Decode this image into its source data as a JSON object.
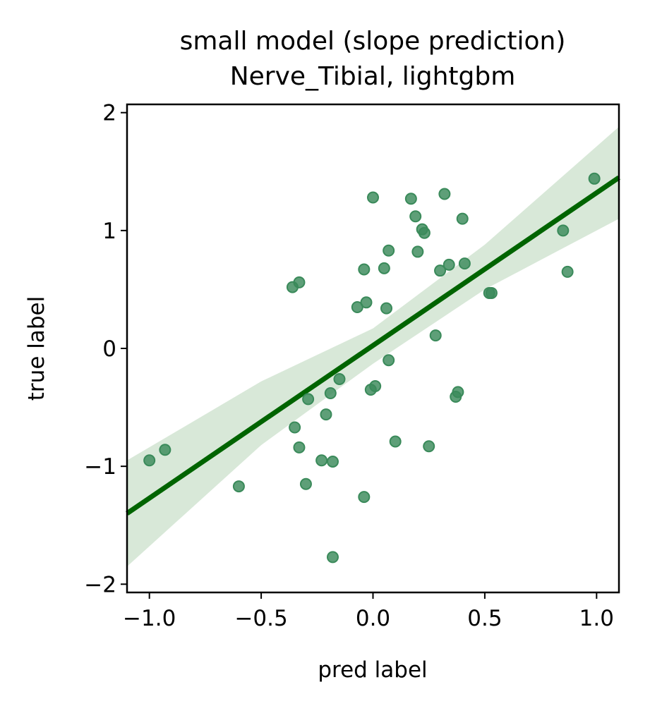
{
  "chart_data": {
    "type": "scatter",
    "title_line1": "small model (slope prediction)",
    "title_line2": "Nerve_Tibial, lightgbm",
    "xlabel": "pred label",
    "ylabel": "true label",
    "xlim": [
      -1.1,
      1.1
    ],
    "ylim": [
      -2.07,
      2.07
    ],
    "xticks": [
      -1.0,
      -0.5,
      0.0,
      0.5,
      1.0
    ],
    "xtick_labels": [
      "−1.0",
      "−0.5",
      "0.0",
      "0.5",
      "1.0"
    ],
    "yticks": [
      -2,
      -1,
      0,
      1,
      2
    ],
    "ytick_labels": [
      "−2",
      "−1",
      "0",
      "1",
      "2"
    ],
    "grid": false,
    "colors": {
      "points": "#3a8a5a",
      "line": "#006400",
      "band": "#d8e8d8"
    },
    "regression": {
      "slope": 1.295,
      "intercept": 0.025,
      "ci_upper": [
        [
          -1.1,
          -0.95
        ],
        [
          -0.5,
          -0.28
        ],
        [
          0.0,
          0.17
        ],
        [
          0.5,
          0.88
        ],
        [
          1.1,
          1.88
        ]
      ],
      "ci_lower": [
        [
          -1.1,
          -1.85
        ],
        [
          -0.5,
          -0.82
        ],
        [
          0.0,
          -0.13
        ],
        [
          0.5,
          0.5
        ],
        [
          1.1,
          1.1
        ]
      ]
    },
    "points": [
      [
        -1.0,
        -0.95
      ],
      [
        -0.93,
        -0.86
      ],
      [
        -0.6,
        -1.17
      ],
      [
        -0.36,
        0.52
      ],
      [
        -0.33,
        0.56
      ],
      [
        -0.35,
        -0.67
      ],
      [
        -0.33,
        -0.84
      ],
      [
        -0.3,
        -1.15
      ],
      [
        -0.29,
        -0.43
      ],
      [
        -0.23,
        -0.95
      ],
      [
        -0.21,
        -0.56
      ],
      [
        -0.19,
        -0.38
      ],
      [
        -0.18,
        -0.96
      ],
      [
        -0.18,
        -1.77
      ],
      [
        -0.15,
        -0.26
      ],
      [
        -0.07,
        0.35
      ],
      [
        -0.04,
        0.67
      ],
      [
        -0.03,
        0.39
      ],
      [
        -0.04,
        -1.26
      ],
      [
        -0.01,
        -0.35
      ],
      [
        0.01,
        -0.32
      ],
      [
        0.0,
        1.28
      ],
      [
        0.05,
        0.68
      ],
      [
        0.06,
        0.34
      ],
      [
        0.07,
        0.83
      ],
      [
        0.07,
        -0.1
      ],
      [
        0.1,
        -0.79
      ],
      [
        0.17,
        1.27
      ],
      [
        0.19,
        1.12
      ],
      [
        0.2,
        0.82
      ],
      [
        0.22,
        1.01
      ],
      [
        0.23,
        0.98
      ],
      [
        0.25,
        -0.83
      ],
      [
        0.28,
        0.11
      ],
      [
        0.3,
        0.66
      ],
      [
        0.32,
        1.31
      ],
      [
        0.34,
        0.71
      ],
      [
        0.37,
        -0.41
      ],
      [
        0.38,
        -0.37
      ],
      [
        0.4,
        1.1
      ],
      [
        0.41,
        0.72
      ],
      [
        0.52,
        0.47
      ],
      [
        0.53,
        0.47
      ],
      [
        0.85,
        1.0
      ],
      [
        0.87,
        0.65
      ],
      [
        0.99,
        1.44
      ]
    ]
  }
}
